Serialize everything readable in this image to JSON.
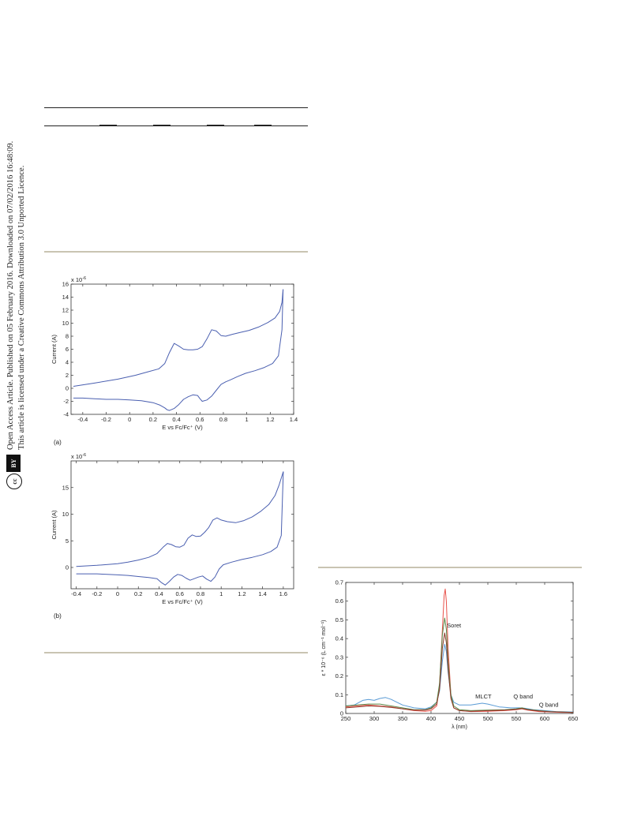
{
  "sidebar": {
    "line1": "Open Access Article. Published on 05 February 2016. Downloaded on 07/02/2016 16:48:09.",
    "line2": "This article is licensed under a Creative Commons Attribution 3.0 Unported Licence.",
    "badge_cc": "cc",
    "badge_by": "BY"
  },
  "figures": {
    "a_label": "(a)",
    "b_label": "(b)"
  },
  "chart_data": [
    {
      "type": "line",
      "panel": "(a)",
      "xlabel": "E vs Fc/Fc⁺ (V)",
      "ylabel": "Current (A)",
      "multiplier": "x 10",
      "multiplier_exp": "-6",
      "xlim": [
        -0.5,
        1.4
      ],
      "ylim": [
        -4,
        16
      ],
      "xticks": [
        "-0.4",
        "-0.2",
        "0",
        "0.2",
        "0.4",
        "0.6",
        "0.8",
        "1",
        "1.2",
        "1.4"
      ],
      "yticks": [
        "-4",
        "-2",
        "0",
        "2",
        "4",
        "6",
        "8",
        "10",
        "12",
        "14",
        "16"
      ],
      "color": "#4a5fb0",
      "series": [
        {
          "x": [
            -0.48,
            -0.3,
            -0.1,
            0.05,
            0.15,
            0.25,
            0.3,
            0.34,
            0.38,
            0.42,
            0.46,
            0.5,
            0.54,
            0.58,
            0.62,
            0.66,
            0.7,
            0.74,
            0.78,
            0.82,
            0.88,
            0.95,
            1.02,
            1.1,
            1.18,
            1.24,
            1.28,
            1.3,
            1.31
          ],
          "y": [
            0.3,
            0.8,
            1.4,
            2.0,
            2.5,
            3.0,
            3.8,
            5.5,
            6.9,
            6.5,
            6.0,
            5.9,
            5.9,
            6.0,
            6.4,
            7.6,
            9.0,
            8.8,
            8.1,
            8.0,
            8.3,
            8.6,
            8.9,
            9.4,
            10.1,
            10.8,
            11.8,
            13.2,
            15.2
          ]
        },
        {
          "x": [
            1.31,
            1.3,
            1.27,
            1.22,
            1.15,
            1.07,
            0.99,
            0.92,
            0.86,
            0.82,
            0.78,
            0.74,
            0.7,
            0.66,
            0.62,
            0.6,
            0.58,
            0.54,
            0.5,
            0.46,
            0.42,
            0.38,
            0.34,
            0.32,
            0.3,
            0.26,
            0.2,
            0.1,
            0,
            -0.1,
            -0.2,
            -0.3,
            -0.4,
            -0.48
          ],
          "y": [
            15.2,
            9.0,
            5.0,
            3.8,
            3.2,
            2.7,
            2.3,
            1.8,
            1.3,
            1.0,
            0.6,
            -0.3,
            -1.2,
            -1.8,
            -2.0,
            -1.6,
            -1.1,
            -1.0,
            -1.3,
            -1.7,
            -2.5,
            -3.1,
            -3.4,
            -3.3,
            -3.0,
            -2.6,
            -2.2,
            -1.9,
            -1.8,
            -1.7,
            -1.7,
            -1.6,
            -1.5,
            -1.5
          ]
        }
      ]
    },
    {
      "type": "line",
      "panel": "(b)",
      "xlabel": "E vs Fc/Fc⁺ (V)",
      "ylabel": "Current (A)",
      "multiplier": "x 10",
      "multiplier_exp": "-6",
      "xlim": [
        -0.45,
        1.7
      ],
      "ylim": [
        -4,
        20
      ],
      "xticks": [
        "-0.4",
        "-0.2",
        "0",
        "0.2",
        "0.4",
        "0.6",
        "0.8",
        "1",
        "1.2",
        "1.4",
        "1.6"
      ],
      "yticks": [
        "0",
        "5",
        "10",
        "15"
      ],
      "color": "#4a5fb0",
      "series": [
        {
          "x": [
            -0.4,
            -0.2,
            0,
            0.1,
            0.2,
            0.3,
            0.38,
            0.44,
            0.48,
            0.52,
            0.56,
            0.6,
            0.64,
            0.68,
            0.72,
            0.76,
            0.8,
            0.84,
            0.88,
            0.92,
            0.96,
            1.0,
            1.06,
            1.14,
            1.22,
            1.3,
            1.38,
            1.46,
            1.52,
            1.56,
            1.6
          ],
          "y": [
            0.2,
            0.4,
            0.7,
            1.0,
            1.4,
            1.9,
            2.6,
            3.8,
            4.5,
            4.3,
            3.9,
            3.8,
            4.2,
            5.5,
            6.1,
            5.8,
            5.9,
            6.6,
            7.5,
            8.9,
            9.3,
            8.9,
            8.6,
            8.4,
            8.8,
            9.5,
            10.5,
            11.8,
            13.5,
            15.5,
            18.0
          ]
        },
        {
          "x": [
            1.6,
            1.58,
            1.54,
            1.48,
            1.4,
            1.3,
            1.2,
            1.1,
            1.02,
            0.98,
            0.94,
            0.9,
            0.86,
            0.82,
            0.78,
            0.74,
            0.7,
            0.66,
            0.62,
            0.58,
            0.54,
            0.5,
            0.46,
            0.42,
            0.38,
            0.3,
            0.2,
            0.1,
            0,
            -0.1,
            -0.2,
            -0.3,
            -0.4
          ],
          "y": [
            18.0,
            6.0,
            3.8,
            3.0,
            2.4,
            1.9,
            1.5,
            1.0,
            0.5,
            -0.3,
            -1.8,
            -2.6,
            -2.2,
            -1.6,
            -1.8,
            -2.1,
            -2.4,
            -2.0,
            -1.5,
            -1.3,
            -1.8,
            -2.6,
            -3.3,
            -2.8,
            -2.1,
            -1.9,
            -1.7,
            -1.5,
            -1.4,
            -1.3,
            -1.2,
            -1.2,
            -1.2
          ]
        }
      ]
    },
    {
      "type": "line",
      "panel": "uv-vis",
      "xlabel": "λ (nm)",
      "ylabel": "ε * 10⁻⁶ (L cm⁻¹ mol⁻¹)",
      "xlim": [
        250,
        650
      ],
      "ylim": [
        0,
        0.7
      ],
      "xticks": [
        "250",
        "300",
        "350",
        "400",
        "450",
        "500",
        "550",
        "600",
        "650"
      ],
      "yticks": [
        "0",
        "0.1",
        "0.2",
        "0.3",
        "0.4",
        "0.5",
        "0.6",
        "0.7"
      ],
      "annotations": [
        {
          "text": "Soret",
          "x": 428,
          "y": 0.46
        },
        {
          "text": "MLCT",
          "x": 478,
          "y": 0.08
        },
        {
          "text": "Q band",
          "x": 545,
          "y": 0.08
        },
        {
          "text": "Q band",
          "x": 590,
          "y": 0.035
        }
      ],
      "series": [
        {
          "color": "#e8514a",
          "x": [
            250,
            270,
            290,
            310,
            330,
            350,
            370,
            390,
            400,
            410,
            415,
            420,
            423,
            425,
            427,
            430,
            435,
            440,
            450,
            470,
            500,
            530,
            550,
            560,
            570,
            590,
            610,
            630,
            650
          ],
          "y": [
            0.035,
            0.04,
            0.045,
            0.04,
            0.035,
            0.025,
            0.015,
            0.012,
            0.015,
            0.04,
            0.15,
            0.45,
            0.63,
            0.665,
            0.6,
            0.35,
            0.1,
            0.03,
            0.015,
            0.01,
            0.012,
            0.015,
            0.02,
            0.025,
            0.018,
            0.01,
            0.008,
            0.006,
            0.005
          ]
        },
        {
          "color": "#5a9bd5",
          "x": [
            250,
            265,
            280,
            290,
            300,
            310,
            320,
            330,
            340,
            350,
            370,
            390,
            400,
            410,
            415,
            420,
            424,
            427,
            430,
            435,
            440,
            450,
            470,
            490,
            500,
            520,
            540,
            555,
            565,
            580,
            600,
            620,
            650
          ],
          "y": [
            0.04,
            0.045,
            0.07,
            0.075,
            0.07,
            0.08,
            0.085,
            0.075,
            0.06,
            0.045,
            0.03,
            0.025,
            0.035,
            0.06,
            0.12,
            0.28,
            0.37,
            0.33,
            0.22,
            0.1,
            0.06,
            0.045,
            0.045,
            0.055,
            0.05,
            0.035,
            0.03,
            0.03,
            0.028,
            0.02,
            0.015,
            0.01,
            0.008
          ]
        },
        {
          "color": "#5a8a4a",
          "x": [
            250,
            270,
            290,
            310,
            330,
            350,
            370,
            390,
            400,
            410,
            415,
            420,
            424,
            427,
            430,
            435,
            440,
            450,
            470,
            500,
            530,
            550,
            560,
            570,
            590,
            610,
            630,
            650
          ],
          "y": [
            0.04,
            0.045,
            0.05,
            0.05,
            0.04,
            0.03,
            0.02,
            0.02,
            0.03,
            0.06,
            0.16,
            0.42,
            0.51,
            0.45,
            0.28,
            0.1,
            0.04,
            0.02,
            0.015,
            0.018,
            0.02,
            0.025,
            0.03,
            0.022,
            0.015,
            0.01,
            0.008,
            0.006
          ]
        },
        {
          "color": "#8b3a2a",
          "x": [
            250,
            270,
            290,
            310,
            330,
            350,
            370,
            390,
            400,
            410,
            415,
            420,
            424,
            427,
            430,
            435,
            440,
            450,
            470,
            500,
            530,
            550,
            560,
            570,
            590,
            610,
            630,
            650
          ],
          "y": [
            0.03,
            0.035,
            0.04,
            0.038,
            0.032,
            0.025,
            0.018,
            0.018,
            0.025,
            0.05,
            0.13,
            0.35,
            0.43,
            0.38,
            0.24,
            0.08,
            0.03,
            0.015,
            0.012,
            0.015,
            0.018,
            0.022,
            0.026,
            0.02,
            0.013,
            0.009,
            0.007,
            0.005
          ]
        }
      ]
    }
  ]
}
